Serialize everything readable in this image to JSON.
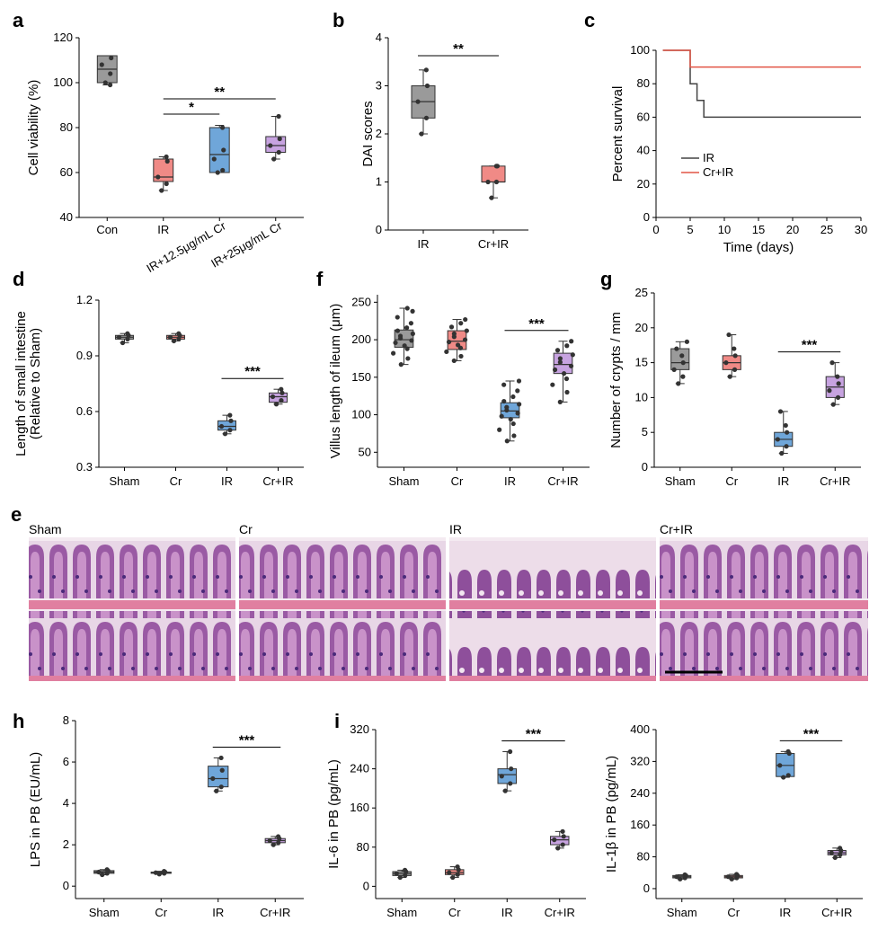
{
  "panel_letters": [
    "a",
    "b",
    "c",
    "d",
    "f",
    "g",
    "e",
    "h",
    "i"
  ],
  "colors": {
    "gray": "#9a9a9a",
    "red": "#f08a86",
    "blue": "#6fa6d9",
    "purple": "#c7a3e0",
    "survival_ir": "#444444",
    "survival_cr": "#e25545"
  },
  "histology": {
    "labels": [
      "Sham",
      "Cr",
      "IR",
      "Cr+IR"
    ]
  },
  "chart_data": [
    {
      "id": "a",
      "type": "box",
      "ylabel": "Cell viability (%)",
      "xlabel": "",
      "ylim": [
        40,
        120
      ],
      "yticks": [
        40,
        60,
        80,
        100,
        120
      ],
      "categories": [
        "Con",
        "IR",
        "IR+12.5μg/mL Cr",
        "IR+25μg/mL Cr"
      ],
      "boxes": [
        {
          "color": "gray",
          "min": 99,
          "q1": 100,
          "median": 106,
          "q3": 112,
          "max": 112,
          "points": [
            100,
            104,
            108,
            111,
            99
          ]
        },
        {
          "color": "red",
          "min": 52,
          "q1": 56,
          "median": 58,
          "q3": 66,
          "max": 67,
          "points": [
            52,
            55,
            58,
            65,
            67
          ]
        },
        {
          "color": "blue",
          "min": 60,
          "q1": 60,
          "median": 68,
          "q3": 80,
          "max": 81,
          "points": [
            60,
            61,
            66,
            70,
            80
          ]
        },
        {
          "color": "purple",
          "min": 66,
          "q1": 69,
          "median": 72,
          "q3": 76,
          "max": 85,
          "points": [
            66,
            69,
            72,
            75,
            85
          ]
        }
      ],
      "sig": [
        {
          "from": 1,
          "to": 2,
          "label": "*"
        },
        {
          "from": 1,
          "to": 3,
          "label": "**"
        }
      ]
    },
    {
      "id": "b",
      "type": "box",
      "ylabel": "DAI scores",
      "xlabel": "",
      "ylim": [
        0,
        4
      ],
      "yticks": [
        0,
        1,
        2,
        3,
        4
      ],
      "categories": [
        "IR",
        "Cr+IR"
      ],
      "boxes": [
        {
          "color": "gray",
          "min": 2.0,
          "q1": 2.33,
          "median": 2.67,
          "q3": 3.0,
          "max": 3.33,
          "points": [
            2.0,
            2.33,
            2.67,
            3.0,
            3.33
          ]
        },
        {
          "color": "red",
          "min": 0.67,
          "q1": 1.0,
          "median": 1.0,
          "q3": 1.33,
          "max": 1.33,
          "points": [
            0.67,
            1.0,
            1.0,
            1.33,
            1.33
          ]
        }
      ],
      "sig": [
        {
          "from": 0,
          "to": 1,
          "label": "**"
        }
      ]
    },
    {
      "id": "c",
      "type": "line",
      "ylabel": "Percent survival",
      "xlabel": "Time (days)",
      "xlim": [
        0,
        30
      ],
      "xticks": [
        0,
        5,
        10,
        15,
        20,
        25,
        30
      ],
      "ylim": [
        0,
        100
      ],
      "yticks": [
        0,
        20,
        40,
        60,
        80,
        100
      ],
      "series": [
        {
          "name": "IR",
          "color": "survival_ir",
          "x": [
            1,
            5,
            5,
            6,
            6,
            7,
            7,
            30
          ],
          "y": [
            100,
            100,
            80,
            80,
            70,
            70,
            60,
            60
          ]
        },
        {
          "name": "Cr+IR",
          "color": "survival_cr",
          "x": [
            1,
            5,
            5,
            30
          ],
          "y": [
            100,
            100,
            90,
            90
          ]
        }
      ]
    },
    {
      "id": "d",
      "type": "box",
      "ylabel": "Length of small intestine",
      "ylabel2": "(Relative to Sham)",
      "ylim": [
        0.3,
        1.2
      ],
      "yticks": [
        "0.3",
        "0.6",
        "0.9",
        "1.2"
      ],
      "categories": [
        "Sham",
        "Cr",
        "IR",
        "Cr+IR"
      ],
      "boxes": [
        {
          "color": "gray",
          "min": 0.97,
          "q1": 0.99,
          "median": 1.0,
          "q3": 1.01,
          "max": 1.02,
          "points": [
            0.97,
            0.99,
            1.0,
            1.01,
            1.02
          ]
        },
        {
          "color": "red",
          "min": 0.98,
          "q1": 0.99,
          "median": 1.0,
          "q3": 1.01,
          "max": 1.02,
          "points": [
            0.98,
            0.99,
            1.0,
            1.01,
            1.02
          ]
        },
        {
          "color": "blue",
          "min": 0.48,
          "q1": 0.5,
          "median": 0.52,
          "q3": 0.55,
          "max": 0.58,
          "points": [
            0.48,
            0.5,
            0.52,
            0.55,
            0.58
          ]
        },
        {
          "color": "purple",
          "min": 0.64,
          "q1": 0.65,
          "median": 0.68,
          "q3": 0.7,
          "max": 0.72,
          "points": [
            0.64,
            0.66,
            0.68,
            0.7,
            0.72
          ]
        }
      ],
      "sig": [
        {
          "from": 2,
          "to": 3,
          "label": "***"
        }
      ]
    },
    {
      "id": "f",
      "type": "box",
      "ylabel": "Villus length of ileum (μm)",
      "ylim": [
        30,
        260
      ],
      "yticks": [
        50,
        100,
        150,
        200,
        250
      ],
      "categories": [
        "Sham",
        "Cr",
        "IR",
        "Cr+IR"
      ],
      "boxes": [
        {
          "color": "gray",
          "min": 167,
          "q1": 190,
          "median": 200,
          "q3": 213,
          "max": 242,
          "points": [
            167,
            175,
            182,
            188,
            192,
            196,
            199,
            202,
            205,
            208,
            212,
            216,
            222,
            230,
            238,
            242
          ]
        },
        {
          "color": "red",
          "min": 172,
          "q1": 187,
          "median": 198,
          "q3": 212,
          "max": 227,
          "points": [
            172,
            178,
            184,
            189,
            193,
            197,
            200,
            204,
            208,
            212,
            217,
            222,
            227
          ]
        },
        {
          "color": "blue",
          "min": 65,
          "q1": 96,
          "median": 105,
          "q3": 116,
          "max": 145,
          "points": [
            65,
            72,
            80,
            88,
            94,
            98,
            102,
            106,
            110,
            114,
            118,
            124,
            132,
            140,
            145
          ]
        },
        {
          "color": "purple",
          "min": 117,
          "q1": 155,
          "median": 167,
          "q3": 182,
          "max": 198,
          "points": [
            117,
            130,
            140,
            148,
            155,
            160,
            165,
            170,
            175,
            180,
            186,
            192,
            198
          ]
        }
      ],
      "sig": [
        {
          "from": 2,
          "to": 3,
          "label": "***"
        }
      ]
    },
    {
      "id": "g",
      "type": "box",
      "ylabel": "Number of crypts / mm",
      "ylim": [
        0,
        25
      ],
      "yticks": [
        0,
        5,
        10,
        15,
        20,
        25
      ],
      "categories": [
        "Sham",
        "Cr",
        "IR",
        "Cr+IR"
      ],
      "boxes": [
        {
          "color": "gray",
          "min": 12,
          "q1": 14,
          "median": 15,
          "q3": 17,
          "max": 18,
          "points": [
            12,
            13,
            14,
            15,
            16,
            17,
            18
          ]
        },
        {
          "color": "red",
          "min": 13,
          "q1": 14,
          "median": 15,
          "q3": 16,
          "max": 19,
          "points": [
            13,
            14,
            15,
            16,
            17,
            19
          ]
        },
        {
          "color": "blue",
          "min": 2,
          "q1": 3,
          "median": 4,
          "q3": 5,
          "max": 8,
          "points": [
            2,
            3,
            4,
            5,
            6,
            8
          ]
        },
        {
          "color": "purple",
          "min": 9,
          "q1": 10,
          "median": 11.5,
          "q3": 13,
          "max": 15,
          "points": [
            9,
            10,
            11,
            12,
            13,
            15
          ]
        }
      ],
      "sig": [
        {
          "from": 2,
          "to": 3,
          "label": "***"
        }
      ]
    },
    {
      "id": "h",
      "type": "box",
      "ylabel": "LPS in PB (EU/mL)",
      "ylim": [
        -0.6,
        8
      ],
      "yticks": [
        0,
        2,
        4,
        6,
        8
      ],
      "categories": [
        "Sham",
        "Cr",
        "IR",
        "Cr+IR"
      ],
      "boxes": [
        {
          "color": "gray",
          "min": 0.55,
          "q1": 0.62,
          "median": 0.68,
          "q3": 0.75,
          "max": 0.8,
          "points": [
            0.55,
            0.62,
            0.68,
            0.75,
            0.8
          ]
        },
        {
          "color": "red",
          "min": 0.58,
          "q1": 0.62,
          "median": 0.65,
          "q3": 0.68,
          "max": 0.72,
          "points": [
            0.58,
            0.62,
            0.65,
            0.68,
            0.72
          ]
        },
        {
          "color": "blue",
          "min": 4.6,
          "q1": 4.8,
          "median": 5.2,
          "q3": 5.8,
          "max": 6.2,
          "points": [
            4.6,
            4.8,
            5.2,
            5.6,
            6.2
          ]
        },
        {
          "color": "purple",
          "min": 2.0,
          "q1": 2.1,
          "median": 2.2,
          "q3": 2.3,
          "max": 2.4,
          "points": [
            2.0,
            2.1,
            2.2,
            2.3,
            2.4
          ]
        }
      ],
      "sig": [
        {
          "from": 2,
          "to": 3,
          "label": "***"
        }
      ]
    },
    {
      "id": "i1",
      "type": "box",
      "ylabel": "IL-6 in PB (pg/mL)",
      "ylim": [
        -25,
        320
      ],
      "yticks": [
        0,
        80,
        160,
        240,
        320
      ],
      "categories": [
        "Sham",
        "Cr",
        "IR",
        "Cr+IR"
      ],
      "boxes": [
        {
          "color": "gray",
          "min": 18,
          "q1": 22,
          "median": 26,
          "q3": 30,
          "max": 33,
          "points": [
            18,
            22,
            26,
            30,
            33
          ]
        },
        {
          "color": "red",
          "min": 18,
          "q1": 24,
          "median": 28,
          "q3": 34,
          "max": 40,
          "points": [
            18,
            24,
            28,
            34,
            40
          ]
        },
        {
          "color": "blue",
          "min": 195,
          "q1": 210,
          "median": 228,
          "q3": 240,
          "max": 275,
          "points": [
            195,
            210,
            225,
            240,
            275
          ]
        },
        {
          "color": "purple",
          "min": 78,
          "q1": 85,
          "median": 95,
          "q3": 102,
          "max": 112,
          "points": [
            78,
            85,
            95,
            102,
            112
          ]
        }
      ],
      "sig": [
        {
          "from": 2,
          "to": 3,
          "label": "***"
        }
      ]
    },
    {
      "id": "i2",
      "type": "box",
      "ylabel": "IL-1β in PB (pg/mL)",
      "ylim": [
        -25,
        400
      ],
      "yticks": [
        0,
        80,
        160,
        240,
        320,
        400
      ],
      "categories": [
        "Sham",
        "Cr",
        "IR",
        "Cr+IR"
      ],
      "boxes": [
        {
          "color": "gray",
          "min": 24,
          "q1": 27,
          "median": 30,
          "q3": 33,
          "max": 35,
          "points": [
            24,
            27,
            30,
            33,
            35
          ]
        },
        {
          "color": "red",
          "min": 24,
          "q1": 27,
          "median": 30,
          "q3": 33,
          "max": 36,
          "points": [
            24,
            27,
            30,
            33,
            36
          ]
        },
        {
          "color": "blue",
          "min": 280,
          "q1": 282,
          "median": 310,
          "q3": 340,
          "max": 345,
          "points": [
            280,
            285,
            310,
            340,
            345
          ]
        },
        {
          "color": "purple",
          "min": 78,
          "q1": 85,
          "median": 90,
          "q3": 96,
          "max": 102,
          "points": [
            78,
            85,
            90,
            96,
            102
          ]
        }
      ],
      "sig": [
        {
          "from": 2,
          "to": 3,
          "label": "***"
        }
      ]
    }
  ]
}
